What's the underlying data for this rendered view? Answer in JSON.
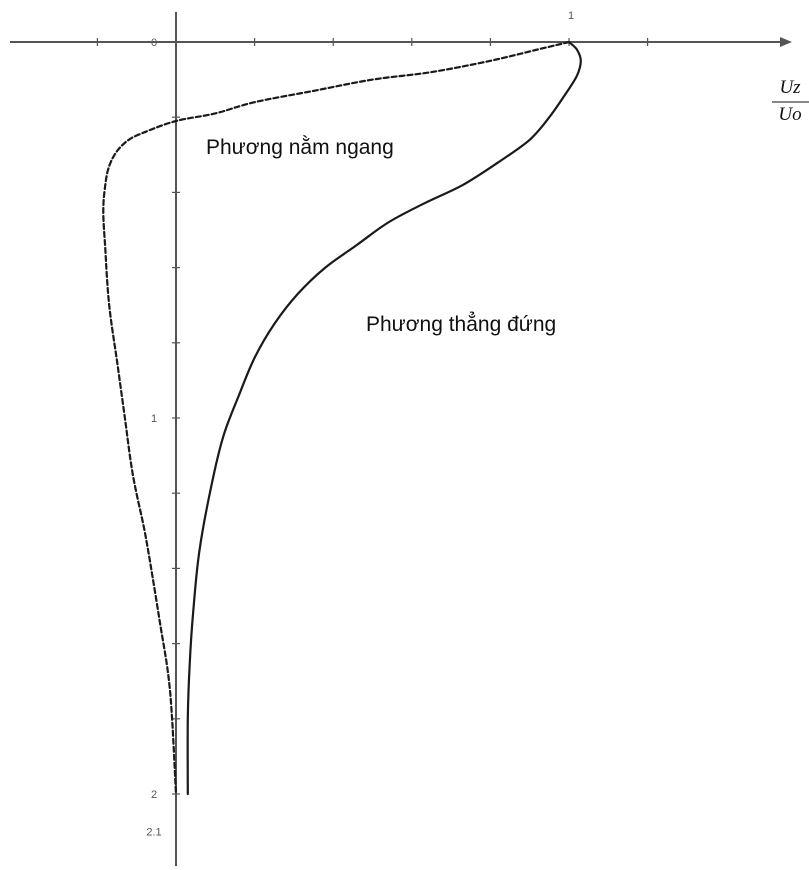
{
  "chart_data": {
    "type": "line",
    "title": "",
    "xlabel": {
      "numerator": "Uz",
      "denominator": "Uo"
    },
    "ylabel": "",
    "xlim": [
      -0.2,
      1.3
    ],
    "ylim": [
      0,
      2.1
    ],
    "y_inverted": true,
    "grid": false,
    "x_tick_labels": [
      {
        "value": 1,
        "text": "1"
      }
    ],
    "y_tick_labels": [
      {
        "value": 0,
        "text": "0"
      },
      {
        "value": 1,
        "text": "1"
      },
      {
        "value": 2,
        "text": "2"
      },
      {
        "value": 2.1,
        "text": "2.1"
      }
    ],
    "series": [
      {
        "name": "Phương nằm ngang",
        "style": "dashed",
        "x": [
          1.0,
          0.92,
          0.8,
          0.65,
          0.5,
          0.35,
          0.2,
          0.1,
          0.0,
          -0.08,
          -0.12,
          -0.15,
          -0.17,
          -0.18,
          -0.185,
          -0.18,
          -0.17,
          -0.15,
          -0.13,
          -0.11,
          -0.08,
          -0.06,
          -0.04,
          -0.02,
          -0.01,
          0.0
        ],
        "y": [
          0.0,
          0.02,
          0.05,
          0.08,
          0.1,
          0.13,
          0.16,
          0.19,
          0.21,
          0.24,
          0.26,
          0.29,
          0.33,
          0.38,
          0.45,
          0.55,
          0.7,
          0.85,
          1.0,
          1.15,
          1.3,
          1.42,
          1.55,
          1.68,
          1.8,
          2.0
        ]
      },
      {
        "name": "Phương thẳng đứng",
        "style": "solid",
        "x": [
          1.0,
          1.02,
          1.03,
          1.02,
          0.99,
          0.95,
          0.9,
          0.82,
          0.73,
          0.63,
          0.54,
          0.46,
          0.38,
          0.31,
          0.25,
          0.2,
          0.16,
          0.12,
          0.09,
          0.06,
          0.045,
          0.035,
          0.03,
          0.03
        ],
        "y": [
          0.0,
          0.02,
          0.05,
          0.09,
          0.14,
          0.2,
          0.26,
          0.32,
          0.38,
          0.43,
          0.48,
          0.54,
          0.6,
          0.67,
          0.75,
          0.84,
          0.94,
          1.05,
          1.18,
          1.35,
          1.5,
          1.65,
          1.8,
          2.0
        ]
      }
    ],
    "annotations": [
      {
        "text": "Phương nằm ngang",
        "series": 0
      },
      {
        "text": "Phương thẳng đứng",
        "series": 1
      }
    ],
    "colors": {
      "axis": "#555555",
      "curve": "#1a1a1a",
      "text": "#111111"
    }
  }
}
